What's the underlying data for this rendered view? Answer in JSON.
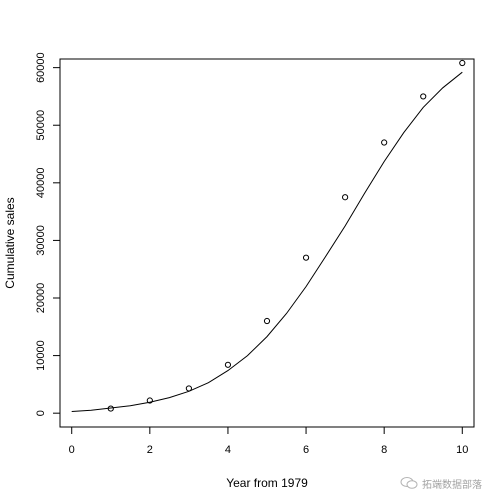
{
  "chart_data": {
    "type": "scatter",
    "xlabel": "Year from 1979",
    "ylabel": "Cumulative sales",
    "xlim": [
      -0.3,
      10.3
    ],
    "ylim": [
      -2400,
      61500
    ],
    "x_ticks": [
      0,
      2,
      4,
      6,
      8,
      10
    ],
    "y_ticks": [
      0,
      10000,
      20000,
      30000,
      40000,
      50000,
      60000
    ],
    "grid": false,
    "series": [
      {
        "kind": "points",
        "marker": "open-circle",
        "x": [
          1,
          2,
          3,
          4,
          5,
          6,
          7,
          8,
          9,
          10
        ],
        "y": [
          800,
          2200,
          4300,
          8400,
          16000,
          27000,
          37500,
          47000,
          55000,
          60800
        ]
      },
      {
        "kind": "line",
        "x": [
          0,
          0.5,
          1,
          1.5,
          2,
          2.5,
          3,
          3.5,
          4,
          4.5,
          5,
          5.5,
          6,
          6.5,
          7,
          7.5,
          8,
          8.5,
          9,
          9.5,
          10
        ],
        "y": [
          300,
          500,
          900,
          1300,
          1900,
          2700,
          3800,
          5300,
          7400,
          10000,
          13300,
          17300,
          22000,
          27200,
          32500,
          38200,
          43700,
          48700,
          53100,
          56500,
          59200
        ]
      }
    ]
  },
  "watermark": {
    "text": "拓端数据部落"
  },
  "colors": {
    "ink": "#000000",
    "background": "#ffffff"
  }
}
